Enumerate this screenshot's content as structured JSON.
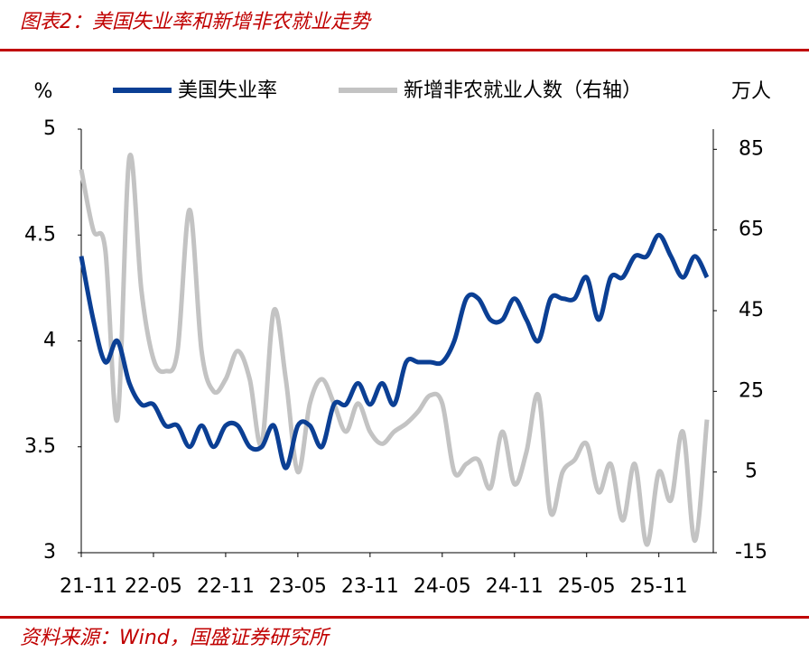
{
  "title": "图表2：美国失业率和新增非农就业走势",
  "source": "资料来源：Wind，国盛证券研究所",
  "chart_data": {
    "type": "line",
    "y_label": "%",
    "y2_label": "万人",
    "categories": [
      "21-11",
      null,
      null,
      null,
      null,
      null,
      "22-05",
      null,
      null,
      null,
      null,
      null,
      "22-11",
      null,
      null,
      null,
      null,
      null,
      "23-05",
      null,
      null,
      null,
      null,
      null,
      "23-11",
      null,
      null,
      null,
      null,
      null,
      "24-05",
      null,
      null,
      null,
      null,
      null,
      "24-11",
      null,
      null,
      null,
      null,
      null,
      "25-05",
      null,
      null,
      null,
      null,
      null,
      "25-11",
      null,
      null,
      null,
      null
    ],
    "series": [
      {
        "name": "美国失业率",
        "color": "#0b3f94",
        "values": [
          4.4,
          4.1,
          3.9,
          4.0,
          3.8,
          3.7,
          3.7,
          3.6,
          3.6,
          3.5,
          3.6,
          3.5,
          3.6,
          3.6,
          3.5,
          3.5,
          3.6,
          3.4,
          3.6,
          3.6,
          3.5,
          3.7,
          3.7,
          3.8,
          3.7,
          3.8,
          3.7,
          3.9,
          3.9,
          3.9,
          3.9,
          4.0,
          4.2,
          4.2,
          4.1,
          4.1,
          4.2,
          4.1,
          4.0,
          4.2,
          4.2,
          4.2,
          4.3,
          4.1,
          4.3,
          4.3,
          4.4,
          4.4,
          4.5,
          4.4,
          4.3,
          4.4,
          4.3
        ]
      },
      {
        "name": "新增非农就业人数（右轴）",
        "color": "#c3c3c3",
        "axis": "y2",
        "values": [
          80,
          65,
          60,
          18,
          83,
          50,
          33,
          30,
          35,
          70,
          35,
          25,
          28,
          35,
          28,
          12,
          45,
          28,
          5,
          22,
          28,
          22,
          15,
          22,
          15,
          12,
          15,
          17,
          20,
          24,
          22,
          5,
          7,
          8,
          1,
          15,
          2,
          10,
          24,
          -5,
          5,
          8,
          12,
          0,
          7,
          -7,
          7,
          -13,
          5,
          -2,
          15,
          -12,
          18
        ]
      }
    ],
    "ylim": [
      3,
      5
    ],
    "yticks": [
      3,
      3.5,
      4,
      4.5,
      5
    ],
    "y2lim": [
      -15,
      90
    ],
    "y2ticks": [
      -15,
      5,
      25,
      45,
      65,
      85
    ],
    "legend": "top"
  }
}
